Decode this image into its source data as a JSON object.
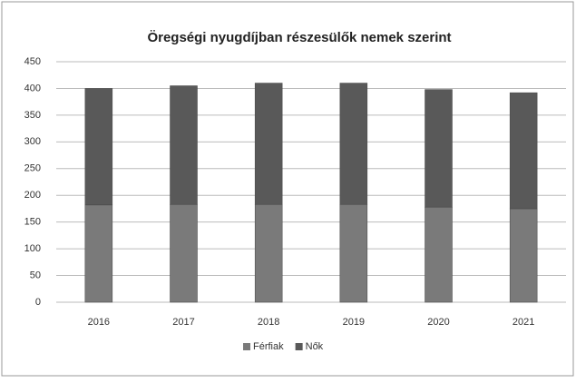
{
  "chart_data": {
    "type": "stacked_bar",
    "title": "Öregségi nyugdíjban részesülők nemek szerint",
    "categories": [
      "2016",
      "2017",
      "2018",
      "2019",
      "2020",
      "2021"
    ],
    "series": [
      {
        "name": "Férfiak",
        "color": "#7a7a7a",
        "values": [
          182,
          183,
          183,
          183,
          178,
          175
        ]
      },
      {
        "name": "Nők",
        "color": "#595959",
        "values": [
          218,
          222,
          227,
          227,
          220,
          217
        ]
      }
    ],
    "ylim": [
      0,
      450
    ],
    "yticks": [
      0,
      50,
      100,
      150,
      200,
      250,
      300,
      350,
      400,
      450
    ],
    "grid": true,
    "legend": "bottom"
  }
}
